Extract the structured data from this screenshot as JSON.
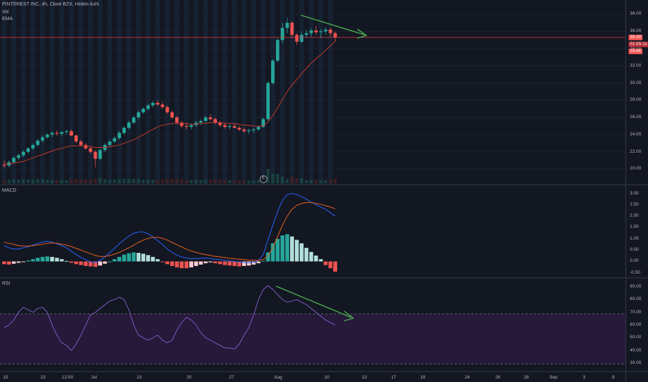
{
  "legend": {
    "title": "PINTEREST INC, 4h, Cboe BZX, Heikin Ashi",
    "vol": "Vol",
    "ema": "EMA",
    "macd": "MACD",
    "rsi": "RSI",
    "earnings_marker": "E"
  },
  "price_tags": {
    "last": "35.30",
    "countdown": "01:55:11",
    "ema": "34.86"
  },
  "price_axis": [
    "38.00",
    "36.00",
    "34.00",
    "32.00",
    "30.00",
    "28.00",
    "26.00",
    "24.00",
    "22.00",
    "20.00"
  ],
  "macd_axis": [
    "3.00",
    "2.50",
    "2.00",
    "1.50",
    "1.00",
    "0.50",
    "0.00",
    "-0.50"
  ],
  "rsi_axis": [
    "90.00",
    "80.00",
    "70.00",
    "60.00",
    "50.00",
    "40.00",
    "30.00"
  ],
  "time_axis": [
    "15",
    "22",
    "12:00",
    "Jul",
    "13",
    "20",
    "27",
    "Aug",
    "10",
    "13",
    "17",
    "19",
    "24",
    "26",
    "28",
    "Sep",
    "3",
    "8"
  ],
  "colors": {
    "up": "#26a69a",
    "down": "#ef5350",
    "ema": "#c0392b",
    "macd_line": "#2962ff",
    "signal_line": "#e8601c",
    "rsi_line": "#7e57c2",
    "rsi_band": "#3b1f56",
    "annotation": "#4caf50",
    "price_line": "#f23645"
  },
  "chart_data": [
    {
      "type": "candlestick",
      "panel": "price",
      "ylim": [
        18.5,
        39
      ],
      "horizontal_line": 35.3,
      "candles": [
        [
          20.5,
          21.0,
          20.1,
          20.4
        ],
        [
          20.4,
          21.0,
          20.2,
          20.8
        ],
        [
          20.8,
          21.5,
          20.6,
          21.3
        ],
        [
          21.3,
          21.8,
          21.0,
          21.6
        ],
        [
          21.6,
          22.2,
          21.4,
          22.0
        ],
        [
          22.0,
          22.6,
          21.8,
          22.4
        ],
        [
          22.4,
          23.0,
          22.2,
          22.8
        ],
        [
          22.8,
          23.5,
          22.6,
          23.3
        ],
        [
          23.3,
          23.9,
          23.1,
          23.7
        ],
        [
          23.7,
          24.2,
          23.5,
          24.0
        ],
        [
          24.0,
          24.4,
          23.7,
          24.2
        ],
        [
          24.2,
          24.5,
          23.9,
          24.1
        ],
        [
          24.1,
          24.4,
          23.8,
          24.3
        ],
        [
          24.3,
          24.6,
          24.0,
          24.4
        ],
        [
          24.4,
          24.6,
          23.8,
          23.9
        ],
        [
          23.9,
          24.0,
          23.0,
          23.2
        ],
        [
          23.2,
          23.4,
          22.6,
          22.8
        ],
        [
          22.8,
          23.0,
          22.2,
          22.4
        ],
        [
          22.4,
          22.6,
          21.8,
          22.0
        ],
        [
          22.0,
          22.2,
          20.2,
          21.2
        ],
        [
          21.2,
          22.4,
          21.0,
          22.2
        ],
        [
          22.2,
          23.0,
          22.0,
          22.8
        ],
        [
          22.8,
          23.4,
          22.6,
          23.2
        ],
        [
          23.2,
          23.8,
          23.0,
          23.6
        ],
        [
          23.6,
          24.4,
          23.4,
          24.2
        ],
        [
          24.2,
          25.0,
          24.0,
          24.8
        ],
        [
          24.8,
          25.6,
          24.6,
          25.4
        ],
        [
          25.4,
          26.2,
          25.2,
          26.0
        ],
        [
          26.0,
          26.8,
          25.8,
          26.6
        ],
        [
          26.6,
          27.2,
          26.4,
          27.0
        ],
        [
          27.0,
          27.6,
          26.8,
          27.4
        ],
        [
          27.4,
          27.9,
          27.2,
          27.7
        ],
        [
          27.7,
          28.0,
          27.3,
          27.5
        ],
        [
          27.5,
          27.8,
          27.0,
          27.2
        ],
        [
          27.2,
          27.4,
          26.4,
          26.6
        ],
        [
          26.6,
          26.8,
          25.8,
          26.0
        ],
        [
          26.0,
          26.2,
          25.2,
          25.4
        ],
        [
          25.4,
          25.6,
          24.8,
          25.0
        ],
        [
          25.0,
          25.4,
          24.6,
          24.9
        ],
        [
          24.9,
          25.3,
          24.6,
          25.1
        ],
        [
          25.1,
          25.6,
          24.9,
          25.4
        ],
        [
          25.4,
          25.8,
          25.1,
          25.6
        ],
        [
          25.6,
          26.2,
          25.4,
          26.0
        ],
        [
          26.0,
          26.4,
          25.6,
          25.8
        ],
        [
          25.8,
          26.0,
          25.2,
          25.4
        ],
        [
          25.4,
          25.6,
          24.9,
          25.1
        ],
        [
          25.1,
          25.4,
          24.7,
          24.9
        ],
        [
          24.9,
          25.2,
          24.6,
          25.0
        ],
        [
          25.0,
          25.3,
          24.7,
          24.8
        ],
        [
          24.8,
          25.0,
          24.4,
          24.6
        ],
        [
          24.6,
          24.8,
          24.2,
          24.4
        ],
        [
          24.4,
          24.7,
          24.1,
          24.5
        ],
        [
          24.5,
          24.8,
          24.2,
          24.6
        ],
        [
          24.6,
          25.0,
          24.4,
          24.9
        ],
        [
          24.9,
          26.0,
          24.8,
          25.8
        ],
        [
          25.8,
          30.2,
          25.6,
          30.0
        ],
        [
          30.0,
          32.8,
          29.8,
          32.6
        ],
        [
          32.6,
          35.2,
          32.4,
          35.0
        ],
        [
          35.0,
          37.0,
          34.6,
          36.4
        ],
        [
          36.4,
          37.6,
          35.8,
          37.0
        ],
        [
          37.0,
          37.2,
          35.2,
          35.6
        ],
        [
          35.6,
          35.8,
          34.4,
          34.8
        ],
        [
          34.8,
          36.0,
          34.6,
          35.6
        ],
        [
          35.6,
          36.2,
          35.2,
          35.8
        ],
        [
          35.8,
          36.4,
          35.4,
          36.1
        ],
        [
          36.1,
          36.6,
          35.6,
          35.9
        ],
        [
          35.9,
          36.3,
          35.2,
          36.0
        ],
        [
          36.0,
          36.5,
          35.6,
          36.2
        ],
        [
          36.2,
          36.4,
          35.4,
          35.8
        ],
        [
          35.8,
          36.0,
          34.8,
          35.3
        ]
      ],
      "ema": [
        20.6,
        20.6,
        20.7,
        20.8,
        20.9,
        21.1,
        21.3,
        21.5,
        21.7,
        21.9,
        22.1,
        22.3,
        22.4,
        22.6,
        22.7,
        22.7,
        22.7,
        22.7,
        22.6,
        22.5,
        22.5,
        22.5,
        22.6,
        22.7,
        22.8,
        23.0,
        23.2,
        23.4,
        23.7,
        24.0,
        24.3,
        24.6,
        24.9,
        25.1,
        25.2,
        25.3,
        25.3,
        25.3,
        25.3,
        25.2,
        25.2,
        25.3,
        25.3,
        25.4,
        25.4,
        25.4,
        25.3,
        25.3,
        25.3,
        25.2,
        25.1,
        25.1,
        25.0,
        25.0,
        25.0,
        25.5,
        26.2,
        27.1,
        28.1,
        29.0,
        29.8,
        30.4,
        31.1,
        31.7,
        32.3,
        32.8,
        33.3,
        33.8,
        34.3,
        34.86
      ]
    },
    {
      "type": "macd",
      "panel": "macd",
      "ylim": [
        -0.6,
        3.2
      ],
      "histogram": [
        -0.12,
        -0.14,
        -0.1,
        -0.06,
        -0.02,
        0.04,
        0.1,
        0.16,
        0.2,
        0.22,
        0.2,
        0.16,
        0.1,
        0.02,
        -0.06,
        -0.12,
        -0.16,
        -0.2,
        -0.22,
        -0.24,
        -0.18,
        -0.1,
        0.0,
        0.1,
        0.2,
        0.3,
        0.36,
        0.4,
        0.38,
        0.34,
        0.28,
        0.2,
        0.1,
        -0.02,
        -0.12,
        -0.2,
        -0.26,
        -0.3,
        -0.3,
        -0.26,
        -0.2,
        -0.14,
        -0.08,
        -0.04,
        -0.08,
        -0.12,
        -0.16,
        -0.18,
        -0.2,
        -0.22,
        -0.2,
        -0.18,
        -0.14,
        -0.08,
        0.02,
        0.4,
        0.8,
        1.0,
        1.15,
        1.2,
        1.1,
        0.95,
        0.8,
        0.6,
        0.42,
        0.26,
        0.1,
        -0.16,
        -0.3,
        -0.45
      ],
      "macd": [
        0.7,
        0.6,
        0.55,
        0.55,
        0.6,
        0.65,
        0.72,
        0.8,
        0.86,
        0.9,
        0.85,
        0.78,
        0.7,
        0.6,
        0.45,
        0.3,
        0.18,
        0.08,
        -0.02,
        -0.05,
        0.05,
        0.2,
        0.38,
        0.58,
        0.78,
        0.96,
        1.12,
        1.24,
        1.3,
        1.3,
        1.22,
        1.08,
        0.92,
        0.75,
        0.55,
        0.4,
        0.28,
        0.2,
        0.15,
        0.12,
        0.12,
        0.14,
        0.15,
        0.12,
        0.1,
        0.08,
        0.05,
        0.02,
        0.0,
        -0.02,
        -0.05,
        -0.06,
        -0.04,
        0.05,
        0.3,
        0.95,
        1.6,
        2.2,
        2.7,
        2.95,
        3.0,
        2.95,
        2.85,
        2.75,
        2.62,
        2.5,
        2.4,
        2.3,
        2.15,
        2.0
      ],
      "signal": [
        0.85,
        0.8,
        0.75,
        0.7,
        0.68,
        0.68,
        0.7,
        0.72,
        0.76,
        0.8,
        0.82,
        0.8,
        0.76,
        0.72,
        0.66,
        0.58,
        0.5,
        0.42,
        0.34,
        0.26,
        0.22,
        0.22,
        0.26,
        0.32,
        0.4,
        0.5,
        0.6,
        0.72,
        0.84,
        0.94,
        1.02,
        1.06,
        1.06,
        1.02,
        0.94,
        0.84,
        0.74,
        0.64,
        0.54,
        0.46,
        0.4,
        0.34,
        0.3,
        0.26,
        0.22,
        0.2,
        0.17,
        0.14,
        0.12,
        0.1,
        0.08,
        0.06,
        0.05,
        0.05,
        0.08,
        0.25,
        0.6,
        1.1,
        1.6,
        2.0,
        2.3,
        2.48,
        2.56,
        2.6,
        2.6,
        2.56,
        2.52,
        2.46,
        2.4,
        2.32
      ]
    },
    {
      "type": "line",
      "panel": "rsi",
      "ylim": [
        25,
        95
      ],
      "overbought": 70,
      "oversold": 30,
      "rsi": [
        58,
        60,
        64,
        70,
        74,
        72,
        70,
        73,
        74,
        70,
        60,
        52,
        46,
        44,
        40,
        45,
        52,
        60,
        68,
        70,
        73,
        76,
        79,
        80,
        82,
        80,
        72,
        60,
        52,
        50,
        48,
        50,
        52,
        48,
        46,
        48,
        56,
        62,
        66,
        64,
        60,
        54,
        50,
        48,
        46,
        44,
        42,
        42,
        41,
        45,
        52,
        58,
        68,
        80,
        88,
        91,
        88,
        84,
        80,
        78,
        79,
        80,
        78,
        76,
        73,
        70,
        67,
        64,
        62,
        60
      ]
    }
  ]
}
